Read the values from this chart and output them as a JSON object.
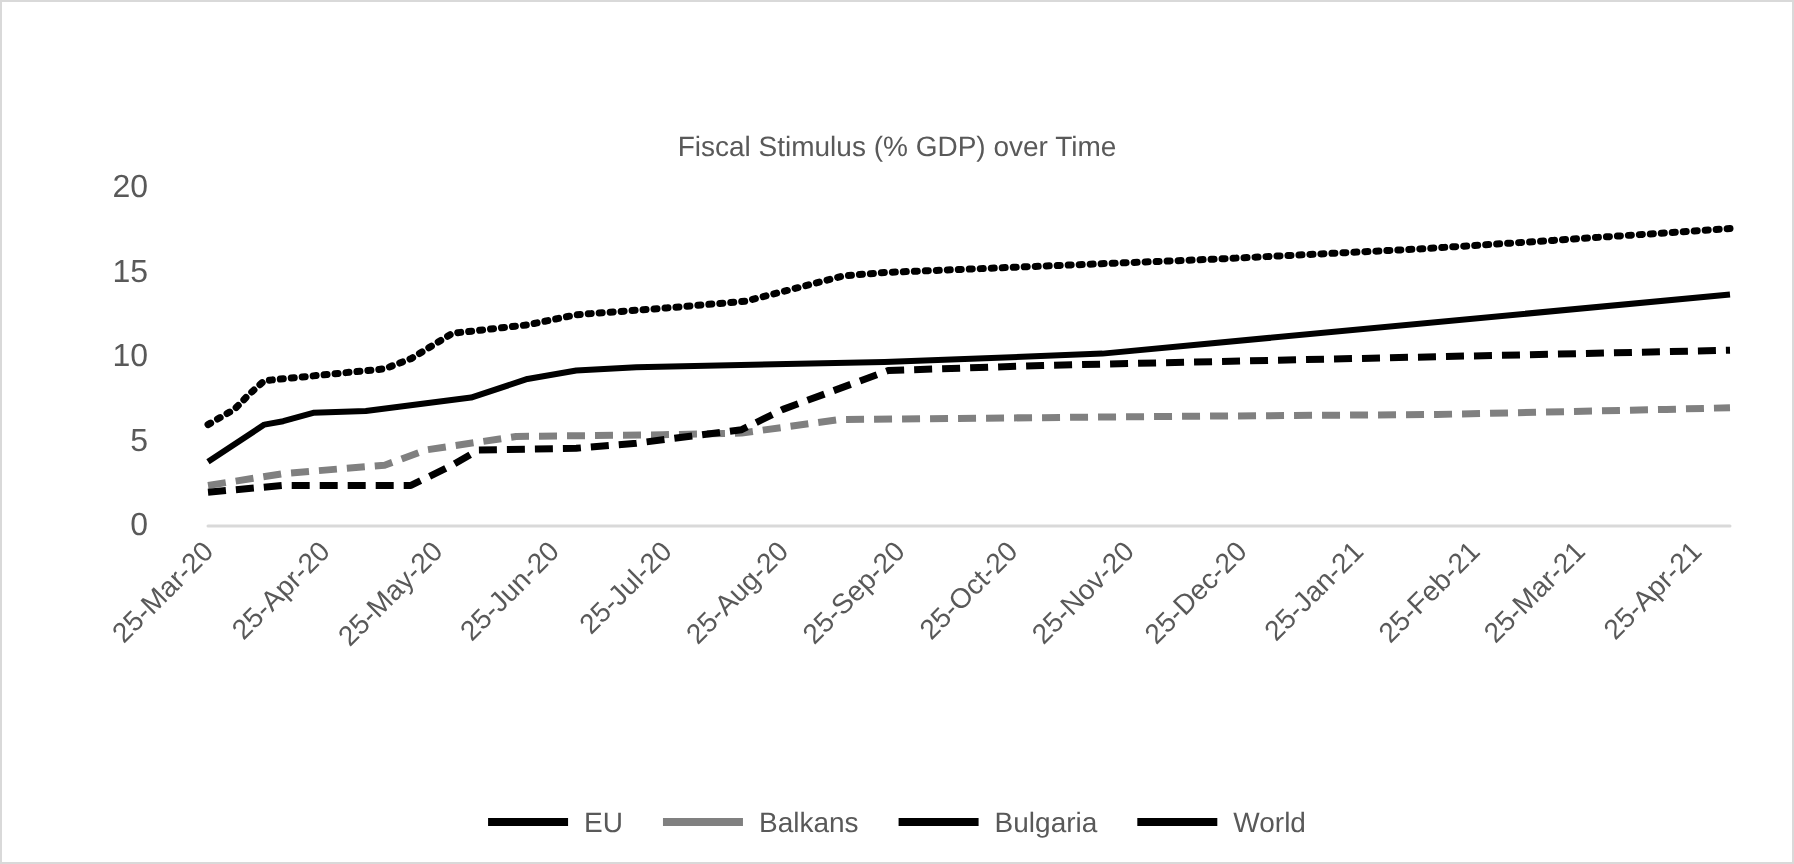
{
  "chart_data": {
    "type": "line",
    "title": "Fiscal Stimulus (% GDP) over Time",
    "xlim": [
      "2020-03-25",
      "2021-05-04"
    ],
    "ylim": [
      0,
      20
    ],
    "yticks": [
      0,
      5,
      10,
      15,
      20
    ],
    "xticks": [
      {
        "value": "2020-03-25",
        "label": "25-Mar-20"
      },
      {
        "value": "2020-04-25",
        "label": "25-Apr-20"
      },
      {
        "value": "2020-05-25",
        "label": "25-May-20"
      },
      {
        "value": "2020-06-25",
        "label": "25-Jun-20"
      },
      {
        "value": "2020-07-25",
        "label": "25-Jul-20"
      },
      {
        "value": "2020-08-25",
        "label": "25-Aug-20"
      },
      {
        "value": "2020-09-25",
        "label": "25-Sep-20"
      },
      {
        "value": "2020-10-25",
        "label": "25-Oct-20"
      },
      {
        "value": "2020-11-25",
        "label": "25-Nov-20"
      },
      {
        "value": "2020-12-25",
        "label": "25-Dec-20"
      },
      {
        "value": "2021-01-25",
        "label": "25-Jan-21"
      },
      {
        "value": "2021-02-25",
        "label": "25-Feb-21"
      },
      {
        "value": "2021-03-25",
        "label": "25-Mar-21"
      },
      {
        "value": "2021-04-25",
        "label": "25-Apr-21"
      }
    ],
    "grid": false,
    "legend": "bottom",
    "marker": "none",
    "series": [
      {
        "name": "EU",
        "color": "#000000",
        "line_style": "dotted",
        "x": [
          "2020-03-25",
          "2020-04-01",
          "2020-04-05",
          "2020-04-09",
          "2020-05-11",
          "2020-05-18",
          "2020-05-29",
          "2020-06-18",
          "2020-07-01",
          "2020-07-25",
          "2020-08-15",
          "2020-08-29",
          "2020-09-10",
          "2020-09-21",
          "2020-12-19",
          "2021-02-11",
          "2021-03-18",
          "2021-05-04"
        ],
        "values": [
          6.0,
          6.9,
          7.8,
          8.6,
          9.3,
          9.9,
          11.4,
          11.9,
          12.5,
          12.9,
          13.3,
          14.1,
          14.8,
          15.0,
          15.8,
          16.4,
          16.9,
          17.6
        ]
      },
      {
        "name": "Balkans",
        "color": "#808080",
        "line_style": "dashed",
        "x": [
          "2020-03-25",
          "2020-04-14",
          "2020-05-11",
          "2020-05-22",
          "2020-06-15",
          "2020-07-24",
          "2020-08-14",
          "2020-09-09",
          "2020-12-14",
          "2021-02-15",
          "2021-04-17",
          "2021-05-04"
        ],
        "values": [
          2.4,
          3.1,
          3.6,
          4.5,
          5.3,
          5.4,
          5.5,
          6.3,
          6.5,
          6.6,
          6.9,
          7.0
        ]
      },
      {
        "name": "Bulgaria",
        "color": "#000000",
        "line_style": "dashed",
        "x": [
          "2020-03-25",
          "2020-04-14",
          "2020-05-18",
          "2020-05-29",
          "2020-06-05",
          "2020-07-01",
          "2020-07-17",
          "2020-08-14",
          "2020-08-25",
          "2020-09-22",
          "2020-11-02",
          "2021-05-04"
        ],
        "values": [
          2.0,
          2.4,
          2.4,
          3.6,
          4.5,
          4.6,
          4.9,
          5.7,
          6.9,
          9.2,
          9.5,
          10.4
        ]
      },
      {
        "name": "World",
        "color": "#000000",
        "line_style": "solid",
        "x": [
          "2020-03-25",
          "2020-04-09",
          "2020-04-14",
          "2020-04-22",
          "2020-05-06",
          "2020-06-03",
          "2020-06-18",
          "2020-07-01",
          "2020-07-17",
          "2020-09-21",
          "2020-11-18",
          "2021-05-04"
        ],
        "values": [
          3.8,
          6.0,
          6.2,
          6.7,
          6.8,
          7.6,
          8.7,
          9.2,
          9.4,
          9.7,
          10.2,
          13.7
        ]
      }
    ]
  }
}
